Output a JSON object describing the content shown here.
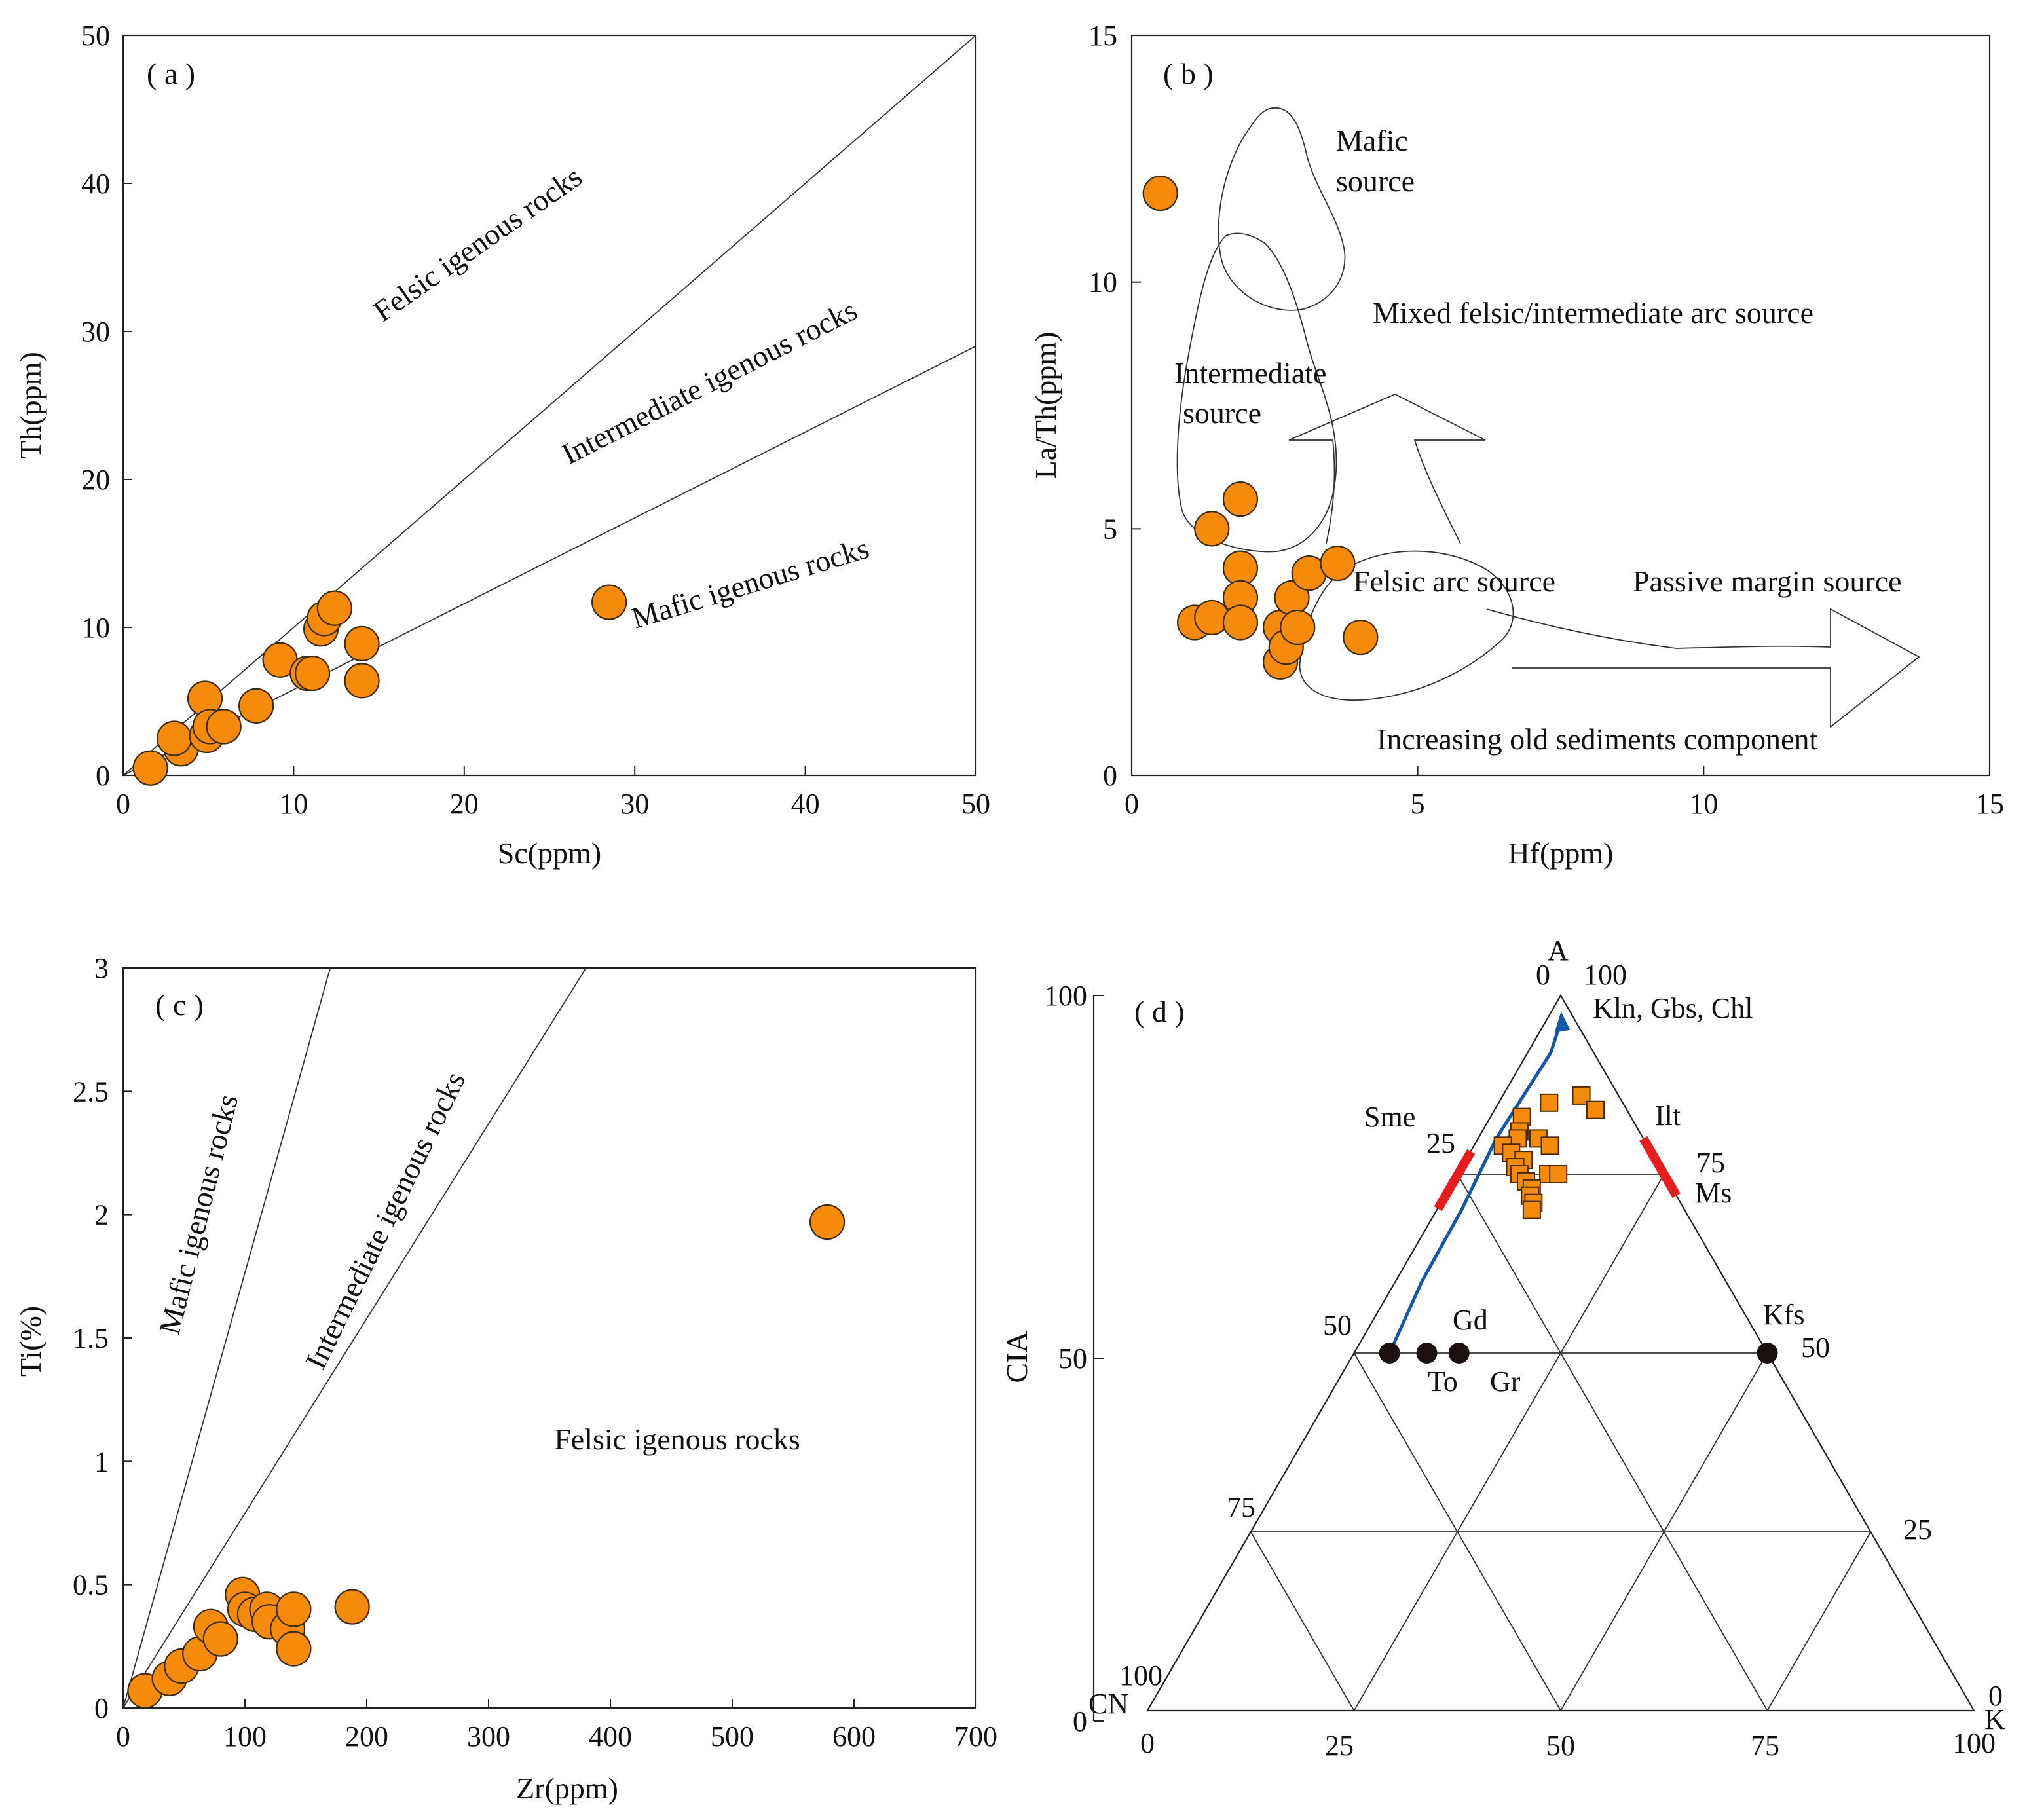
{
  "chart_data": [
    {
      "panel": "(a)",
      "type": "scatter",
      "xlabel": "Sc(ppm)",
      "ylabel": "Th(ppm)",
      "xlim": [
        0,
        50
      ],
      "ylim": [
        0,
        50
      ],
      "xticks": [
        0,
        10,
        20,
        30,
        40,
        50
      ],
      "yticks": [
        0,
        10,
        20,
        30,
        40,
        50
      ],
      "boundaries": [
        {
          "name": "felsic-intermediate",
          "points": [
            [
              0,
              0
            ],
            [
              50,
              50
            ]
          ]
        },
        {
          "name": "intermediate-mafic",
          "points": [
            [
              0,
              0
            ],
            [
              50,
              29
            ]
          ]
        }
      ],
      "regions": [
        {
          "label": "Felsic igenous rocks",
          "rotate": -35
        },
        {
          "label": "Intermediate igenous rocks",
          "rotate": -27
        },
        {
          "label": "Mafic igenous rocks",
          "rotate": -17
        }
      ],
      "points": [
        [
          1.6,
          0.5
        ],
        [
          3.4,
          1.8
        ],
        [
          3.0,
          2.5
        ],
        [
          4.8,
          5.2
        ],
        [
          4.9,
          2.7
        ],
        [
          5.1,
          3.3
        ],
        [
          5.9,
          3.3
        ],
        [
          7.8,
          4.7
        ],
        [
          9.2,
          7.8
        ],
        [
          10.8,
          6.9
        ],
        [
          11.1,
          6.9
        ],
        [
          11.6,
          9.9
        ],
        [
          11.8,
          10.6
        ],
        [
          12.4,
          11.3
        ],
        [
          14.0,
          8.9
        ],
        [
          14.0,
          6.4
        ],
        [
          28.5,
          11.7
        ]
      ]
    },
    {
      "panel": "(b)",
      "type": "scatter",
      "xlabel": "Hf(ppm)",
      "ylabel": "La/Th(ppm)",
      "xlim": [
        0,
        15
      ],
      "ylim": [
        0,
        15
      ],
      "xticks": [
        0,
        5,
        10,
        15
      ],
      "yticks": [
        0,
        5,
        10,
        15
      ],
      "regions": [
        {
          "label_lines": [
            "Mafic",
            "source"
          ]
        },
        {
          "label_lines": [
            "Intermediate",
            "source"
          ]
        },
        {
          "label_lines": [
            "Mixed felsic/intermediate arc source"
          ]
        },
        {
          "label_lines": [
            "Felsic arc source"
          ]
        },
        {
          "label_lines": [
            "Passive margin source"
          ]
        },
        {
          "label_lines": [
            "Increasing old sediments component"
          ]
        }
      ],
      "points": [
        [
          0.5,
          11.8
        ],
        [
          1.1,
          3.1
        ],
        [
          1.4,
          3.2
        ],
        [
          1.4,
          5.0
        ],
        [
          1.9,
          5.6
        ],
        [
          1.9,
          4.2
        ],
        [
          1.9,
          3.6
        ],
        [
          1.9,
          3.1
        ],
        [
          2.6,
          3.0
        ],
        [
          2.6,
          2.3
        ],
        [
          2.7,
          2.6
        ],
        [
          2.8,
          3.6
        ],
        [
          2.9,
          3.0
        ],
        [
          3.1,
          4.1
        ],
        [
          3.6,
          4.3
        ],
        [
          4.0,
          2.8
        ]
      ]
    },
    {
      "panel": "(c)",
      "type": "scatter",
      "xlabel": "Zr(ppm)",
      "ylabel": "Ti(%)",
      "xlim": [
        0,
        700
      ],
      "ylim": [
        0,
        3
      ],
      "xticks": [
        0,
        100,
        200,
        300,
        400,
        500,
        600,
        700
      ],
      "ytick_labels": [
        "0",
        "0.5",
        "1",
        "1.5",
        "2",
        "2.5",
        "3"
      ],
      "boundaries": [
        {
          "name": "mafic-intermediate",
          "points": [
            [
              0,
              0
            ],
            [
              170,
              3
            ]
          ]
        },
        {
          "name": "intermediate-felsic",
          "points": [
            [
              0,
              0
            ],
            [
              380,
              3
            ]
          ]
        }
      ],
      "regions": [
        {
          "label": "Mafic igenous rocks",
          "rotate": -76
        },
        {
          "label": "Intermediate igenous rocks",
          "rotate": -64
        },
        {
          "label": "Felsic igenous rocks",
          "rotate": 0
        }
      ],
      "points": [
        [
          18,
          0.07
        ],
        [
          38,
          0.12
        ],
        [
          48,
          0.17
        ],
        [
          63,
          0.22
        ],
        [
          72,
          0.33
        ],
        [
          80,
          0.28
        ],
        [
          98,
          0.46
        ],
        [
          100,
          0.4
        ],
        [
          108,
          0.38
        ],
        [
          118,
          0.4
        ],
        [
          120,
          0.35
        ],
        [
          135,
          0.32
        ],
        [
          140,
          0.4
        ],
        [
          140,
          0.24
        ],
        [
          188,
          0.41
        ],
        [
          578,
          1.97
        ]
      ]
    },
    {
      "panel": "(d)",
      "type": "ternary",
      "vertices": [
        "A",
        "CN",
        "K"
      ],
      "left_axis_label": "CIA",
      "left_axis_ticks": [
        "0",
        "50",
        "100"
      ],
      "side_labels_left": [
        "0",
        "25",
        "50",
        "75",
        "100"
      ],
      "side_labels_right": [
        "100",
        "75",
        "50",
        "25",
        "0"
      ],
      "bottom_labels": [
        "0",
        "25",
        "50",
        "75",
        "100"
      ],
      "minerals": [
        {
          "label": "Kln, Gbs, Chl"
        },
        {
          "label": "Sme"
        },
        {
          "label": "Ilt"
        },
        {
          "label": "Ms"
        },
        {
          "label": "Kfs"
        },
        {
          "label": "Gd"
        },
        {
          "label": "To"
        },
        {
          "label": "Gr"
        }
      ],
      "reference_points": [
        {
          "name": "To",
          "A": 50,
          "CN": 45.7,
          "K": 4.3
        },
        {
          "name": "Gd",
          "A": 50,
          "CN": 41.2,
          "K": 8.8
        },
        {
          "name": "Gr",
          "A": 50,
          "CN": 37.3,
          "K": 12.7
        },
        {
          "name": "Kfs",
          "A": 50,
          "CN": 0,
          "K": 50
        }
      ],
      "trend_line": [
        [
          50,
          45.7
        ],
        [
          60,
          36.8
        ],
        [
          70,
          27.0
        ],
        [
          80,
          17.8
        ],
        [
          86,
          11.5
        ],
        [
          92,
          5.2
        ],
        [
          97,
          1.3
        ]
      ],
      "samples_CIA_K": [
        [
          86,
          9.5
        ],
        [
          84,
          12.2
        ],
        [
          85,
          6.1
        ],
        [
          83,
          3.8
        ],
        [
          81,
          4.5
        ],
        [
          80,
          4.8
        ],
        [
          80,
          7.3
        ],
        [
          79,
          9.2
        ],
        [
          79,
          3.5
        ],
        [
          78,
          5.0
        ],
        [
          77,
          7.0
        ],
        [
          76,
          6.5
        ],
        [
          75,
          11.0
        ],
        [
          75,
          12.2
        ],
        [
          75,
          7.5
        ],
        [
          74,
          8.8
        ],
        [
          73,
          10.0
        ],
        [
          72,
          10.3
        ],
        [
          71,
          11.2
        ],
        [
          70,
          11.5
        ]
      ]
    }
  ]
}
